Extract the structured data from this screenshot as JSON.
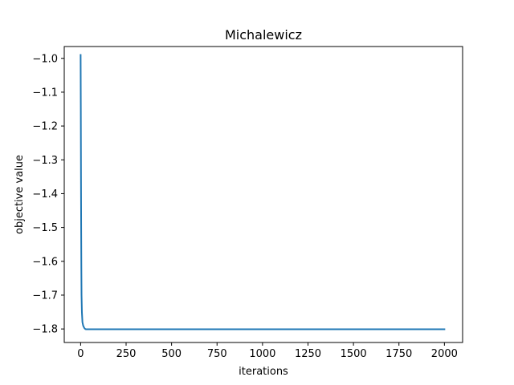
{
  "chart_data": {
    "type": "line",
    "title": "Michalewicz",
    "xlabel": "iterations",
    "ylabel": "objective value",
    "xlim": [
      -90,
      2100
    ],
    "ylim": [
      -1.84,
      -0.965
    ],
    "xticks": [
      0,
      250,
      500,
      750,
      1000,
      1250,
      1500,
      1750,
      2000
    ],
    "xtick_labels": [
      "0",
      "250",
      "500",
      "750",
      "1000",
      "1250",
      "1500",
      "1750",
      "2000"
    ],
    "yticks": [
      -1.0,
      -1.1,
      -1.2,
      -1.3,
      -1.4,
      -1.5,
      -1.6,
      -1.7,
      -1.8
    ],
    "ytick_labels": [
      "−1.0",
      "−1.1",
      "−1.2",
      "−1.3",
      "−1.4",
      "−1.5",
      "−1.6",
      "−1.7",
      "−1.8"
    ],
    "grid": false,
    "color": "#1f77b4",
    "series": [
      {
        "x": [
          0,
          1,
          2,
          3,
          4,
          5,
          7,
          10,
          14,
          20,
          25,
          30,
          40,
          60,
          100,
          200,
          500,
          1000,
          1500,
          2000
        ],
        "y": [
          -0.99,
          -1.15,
          -1.35,
          -1.5,
          -1.62,
          -1.7,
          -1.75,
          -1.78,
          -1.79,
          -1.797,
          -1.8,
          -1.801,
          -1.801,
          -1.801,
          -1.801,
          -1.801,
          -1.801,
          -1.801,
          -1.801,
          -1.801
        ]
      }
    ]
  }
}
